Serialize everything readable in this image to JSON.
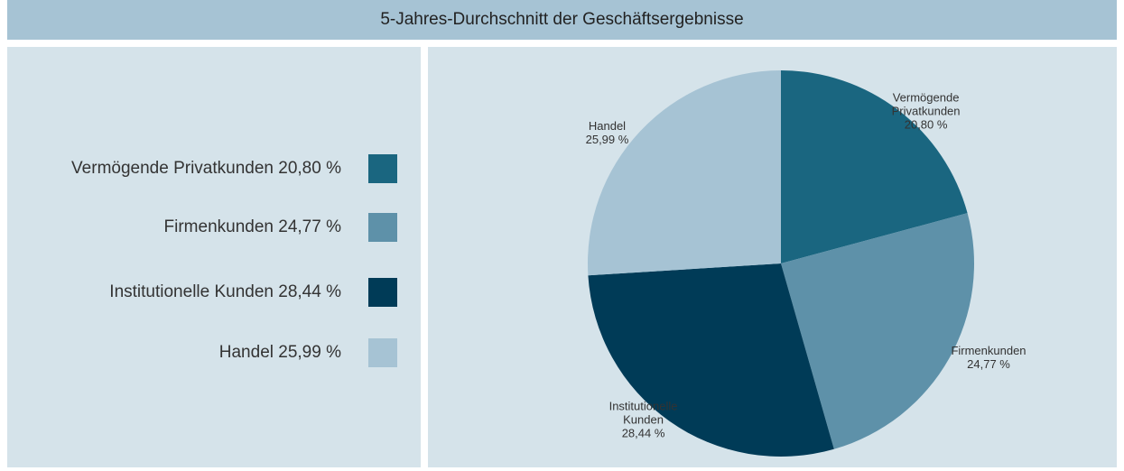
{
  "chart_data": {
    "type": "pie",
    "title": "5-Jahres-Durchschnitt der Geschäftsergebnisse",
    "categories": [
      "Vermögende Privatkunden",
      "Firmenkunden",
      "Institutionelle Kunden",
      "Handel"
    ],
    "values": [
      20.8,
      24.77,
      28.44,
      25.99
    ],
    "value_labels": [
      "20,80 %",
      "24,77 %",
      "28,44 %",
      "25,99 %"
    ],
    "colors": [
      "#1a6680",
      "#5e91a9",
      "#003b57",
      "#a6c3d4"
    ],
    "legend": "left"
  }
}
